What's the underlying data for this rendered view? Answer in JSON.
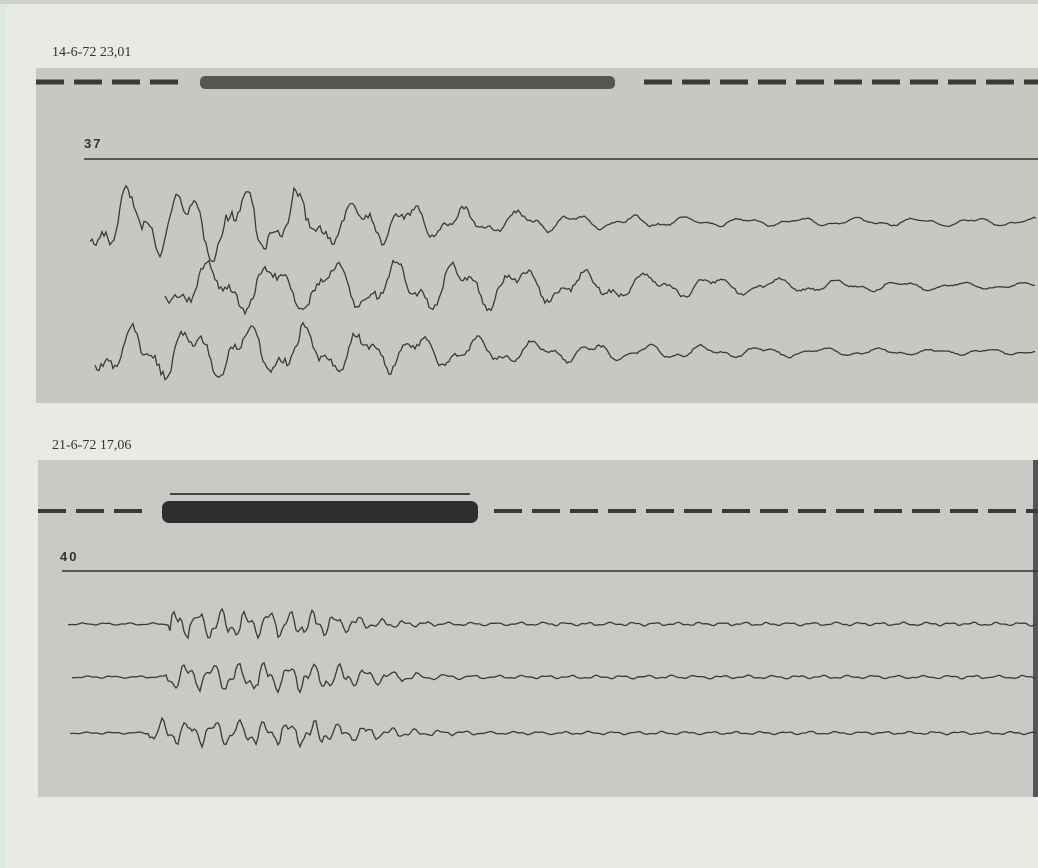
{
  "records": [
    {
      "timestamp": "14-6-72 23,01",
      "label": "37"
    },
    {
      "timestamp": "21-6-72 17,06",
      "label": "40"
    }
  ]
}
